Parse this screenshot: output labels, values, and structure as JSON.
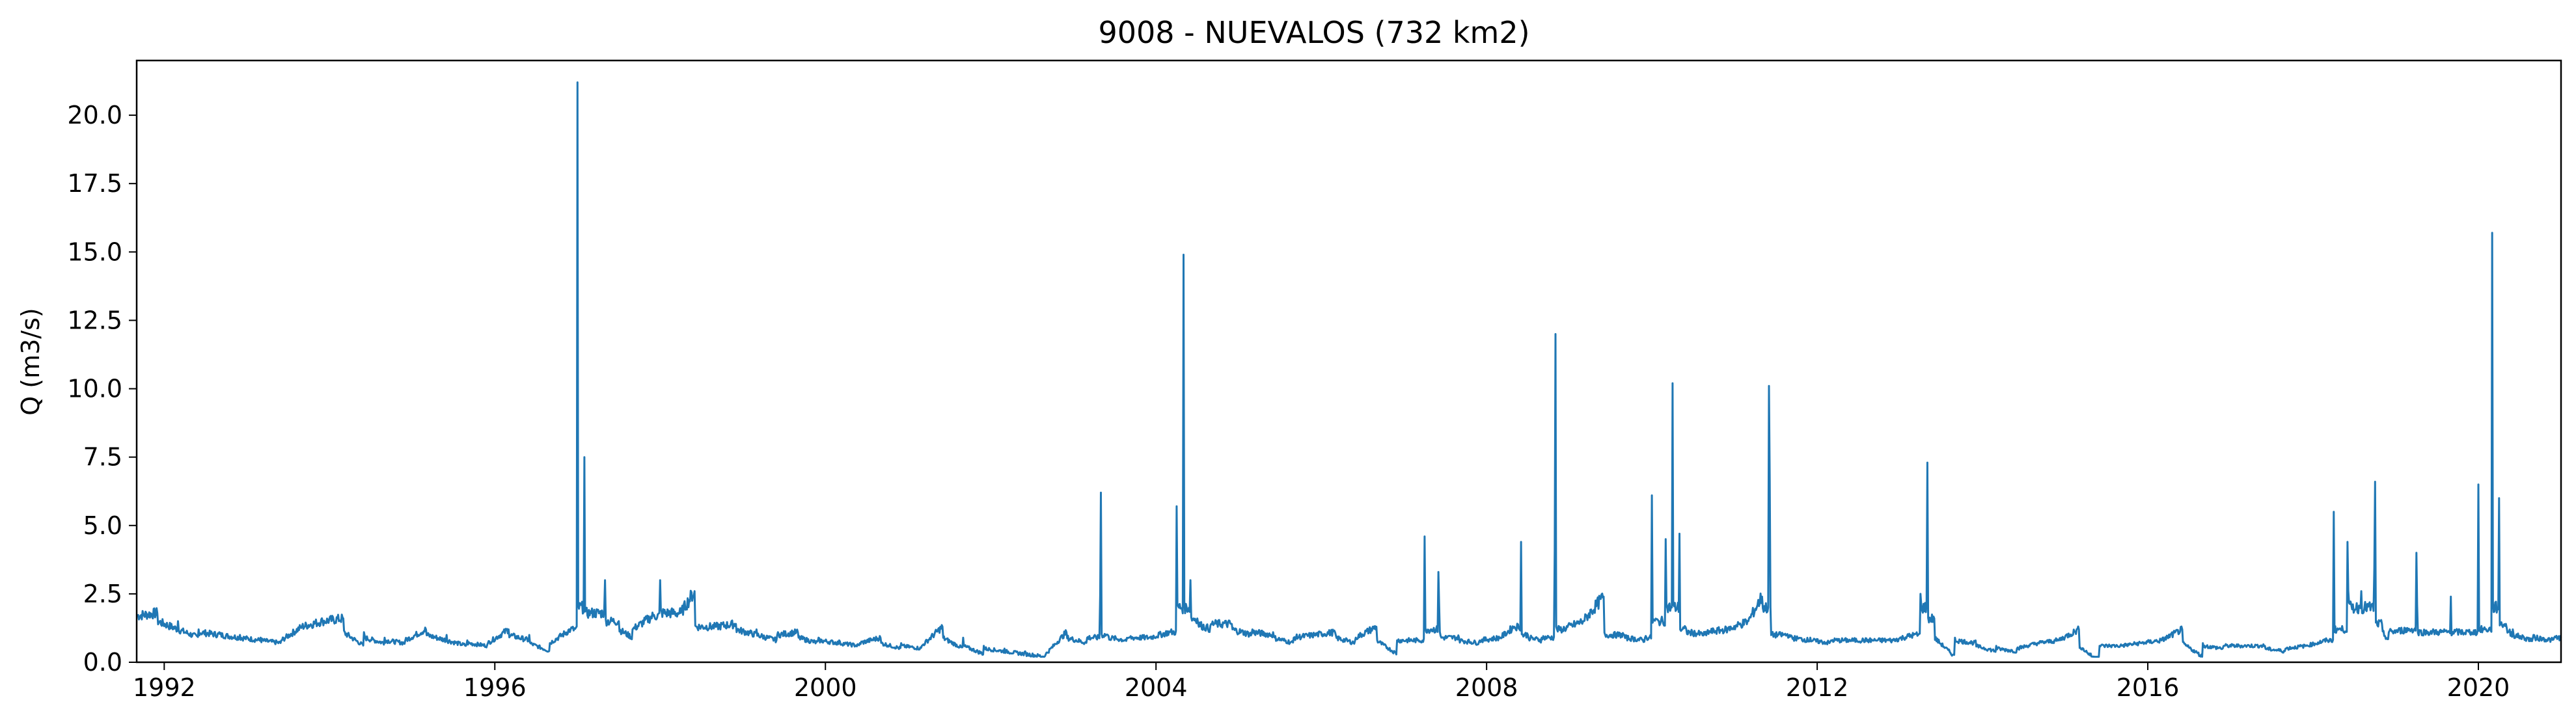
{
  "chart_data": {
    "type": "line",
    "title": "9008 - NUEVALOS (732 km2)",
    "xlabel": "",
    "ylabel": "Q (m3/s)",
    "xlim": [
      "1991-09",
      "2021-01"
    ],
    "ylim": [
      0,
      22
    ],
    "x_ticks": [
      "1992",
      "1996",
      "2000",
      "2004",
      "2008",
      "2012",
      "2016",
      "2020"
    ],
    "y_ticks": [
      "0.0",
      "2.5",
      "5.0",
      "7.5",
      "10.0",
      "12.5",
      "15.0",
      "17.5",
      "20.0"
    ],
    "grid": false,
    "legend": "none",
    "series": [
      {
        "color": "#1f77b4",
        "x": [
          "1991-09",
          "1991-12",
          "1992-03",
          "1992-06",
          "1992-09",
          "1992-12",
          "1993-03",
          "1993-06",
          "1993-09",
          "1993-12",
          "1994-03",
          "1994-06",
          "1994-09",
          "1994-12",
          "1995-03",
          "1995-06",
          "1995-09",
          "1995-12",
          "1996-03",
          "1996-06",
          "1996-09",
          "1996-12",
          "1997-01",
          "1997-02",
          "1997-03",
          "1997-05",
          "1997-07",
          "1997-09",
          "1997-12",
          "1998-01",
          "1998-04",
          "1998-06",
          "1998-09",
          "1998-12",
          "1999-03",
          "1999-06",
          "1999-09",
          "1999-12",
          "2000-03",
          "2000-06",
          "2000-09",
          "2000-12",
          "2001-03",
          "2001-06",
          "2001-09",
          "2001-12",
          "2002-03",
          "2002-06",
          "2002-09",
          "2002-12",
          "2003-03",
          "2003-05",
          "2003-06",
          "2003-09",
          "2003-12",
          "2004-03",
          "2004-04",
          "2004-05",
          "2004-06",
          "2004-07",
          "2004-09",
          "2004-12",
          "2005-03",
          "2005-06",
          "2005-09",
          "2005-12",
          "2006-03",
          "2006-06",
          "2006-09",
          "2006-12",
          "2007-03",
          "2007-04",
          "2007-05",
          "2007-06",
          "2007-09",
          "2007-12",
          "2008-03",
          "2008-05",
          "2008-06",
          "2008-07",
          "2008-09",
          "2008-11",
          "2008-12",
          "2009-03",
          "2009-06",
          "2009-09",
          "2009-12",
          "2010-01",
          "2010-02",
          "2010-03",
          "2010-04",
          "2010-05",
          "2010-06",
          "2010-09",
          "2010-12",
          "2011-03",
          "2011-05",
          "2011-06",
          "2011-09",
          "2011-12",
          "2012-03",
          "2012-06",
          "2012-09",
          "2012-12",
          "2013-03",
          "2013-04",
          "2013-05",
          "2013-06",
          "2013-09",
          "2013-12",
          "2014-03",
          "2014-06",
          "2014-09",
          "2014-12",
          "2015-03",
          "2015-06",
          "2015-09",
          "2015-12",
          "2016-03",
          "2016-06",
          "2016-09",
          "2016-12",
          "2017-03",
          "2017-06",
          "2017-09",
          "2017-12",
          "2018-03",
          "2018-04",
          "2018-05",
          "2018-06",
          "2018-08",
          "2018-10",
          "2018-11",
          "2018-12",
          "2019-03",
          "2019-04",
          "2019-06",
          "2019-09",
          "2019-12",
          "2020-01",
          "2020-02",
          "2020-03",
          "2020-04",
          "2020-05",
          "2020-06",
          "2020-09",
          "2020-12",
          "2021-01"
        ],
        "y": [
          1.7,
          1.8,
          1.5,
          1.2,
          1.1,
          1.0,
          0.9,
          0.8,
          1.3,
          1.5,
          1.6,
          1.1,
          0.9,
          0.8,
          1.2,
          1.0,
          0.8,
          0.7,
          1.2,
          1.0,
          0.7,
          1.2,
          21.2,
          7.5,
          1.8,
          3.0,
          1.5,
          1.2,
          1.7,
          3.0,
          1.8,
          2.6,
          1.3,
          1.4,
          1.2,
          1.0,
          1.1,
          0.9,
          0.8,
          0.7,
          0.9,
          0.7,
          0.6,
          1.3,
          0.9,
          0.6,
          0.5,
          0.4,
          0.3,
          1.1,
          0.9,
          6.2,
          1.0,
          0.9,
          0.9,
          1.1,
          5.7,
          14.9,
          3.0,
          1.6,
          1.4,
          1.4,
          1.2,
          1.1,
          0.9,
          1.0,
          1.1,
          0.9,
          1.3,
          0.8,
          0.8,
          4.6,
          1.2,
          3.3,
          0.9,
          0.8,
          0.9,
          1.3,
          4.4,
          1.0,
          0.9,
          12.0,
          1.2,
          1.5,
          2.4,
          1.0,
          0.9,
          6.1,
          1.5,
          4.5,
          10.2,
          4.7,
          1.2,
          1.1,
          1.2,
          1.5,
          2.4,
          10.1,
          1.0,
          0.9,
          0.8,
          0.8,
          0.8,
          0.8,
          1.0,
          2.5,
          7.3,
          1.6,
          0.9,
          0.8,
          0.6,
          0.5,
          0.7,
          0.8,
          1.2,
          0.6,
          0.6,
          0.7,
          0.8,
          1.2,
          0.7,
          0.6,
          0.6,
          0.6,
          0.5,
          0.6,
          0.8,
          5.5,
          1.2,
          4.4,
          2.6,
          6.6,
          1.4,
          1.1,
          1.2,
          4.0,
          1.1,
          2.4,
          1.1,
          6.5,
          1.2,
          15.7,
          6.0,
          1.4,
          1.2,
          1.0,
          0.9,
          0.9
        ]
      }
    ]
  }
}
